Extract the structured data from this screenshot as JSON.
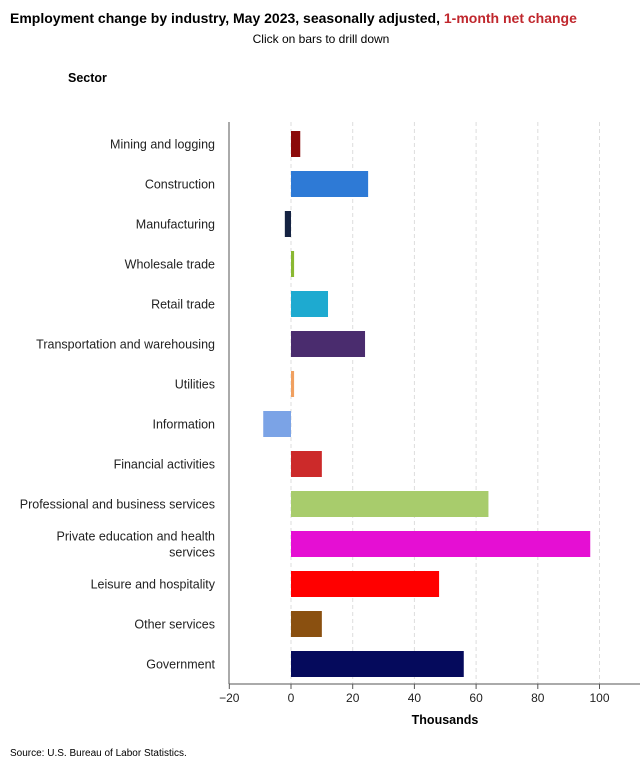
{
  "header": {
    "title_main": "Employment change by industry, May 2023, seasonally adjusted, ",
    "title_accent": "1-month net change",
    "subtitle": "Click on bars to drill down"
  },
  "footer": {
    "source": "Source: U.S. Bureau of Labor Statistics."
  },
  "colors": {
    "accent": "#c0272d"
  },
  "chart_data": {
    "type": "bar",
    "orientation": "horizontal",
    "ylabel": "Sector",
    "xlabel": "Thousands",
    "xlim": [
      -20,
      110
    ],
    "xticks": [
      -20,
      0,
      20,
      40,
      60,
      80,
      100
    ],
    "xtick_labels": [
      "−20",
      "0",
      "20",
      "40",
      "60",
      "80",
      "100"
    ],
    "grid": true,
    "categories": [
      [
        "Mining and logging"
      ],
      [
        "Construction"
      ],
      [
        "Manufacturing"
      ],
      [
        "Wholesale trade"
      ],
      [
        "Retail trade"
      ],
      [
        "Transportation and warehousing"
      ],
      [
        "Utilities"
      ],
      [
        "Information"
      ],
      [
        "Financial activities"
      ],
      [
        "Professional and business services"
      ],
      [
        "Private education and health",
        "services"
      ],
      [
        "Leisure and hospitality"
      ],
      [
        "Other services"
      ],
      [
        "Government"
      ]
    ],
    "values": [
      3,
      25,
      -2,
      1,
      12,
      24,
      1,
      -9,
      10,
      64,
      97,
      48,
      10,
      56
    ],
    "colors": [
      "#8b0a0a",
      "#2e7ad6",
      "#152342",
      "#8ab832",
      "#1eaad0",
      "#4a2c6e",
      "#f0a060",
      "#7ba3e6",
      "#cc2a2a",
      "#a8cc6c",
      "#e50fd3",
      "#ff0000",
      "#8a5010",
      "#050a5c"
    ]
  }
}
